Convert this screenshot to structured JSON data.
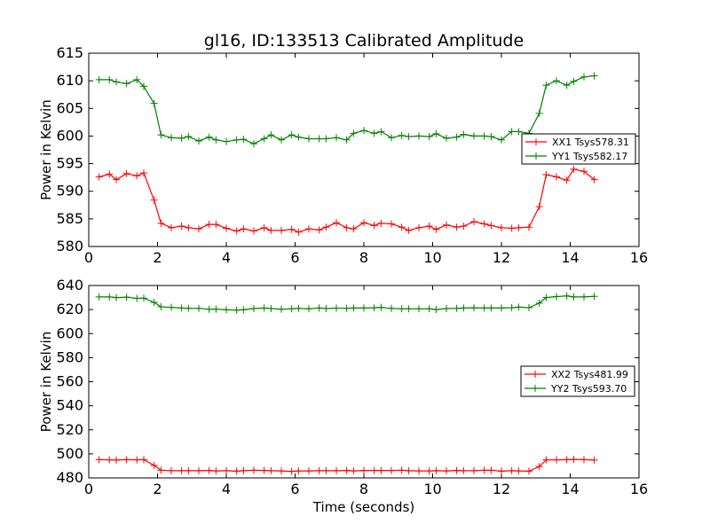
{
  "chart_data": [
    {
      "type": "line",
      "title": "gl16, ID:133513 Calibrated Amplitude",
      "xlabel": "",
      "ylabel": "Power in Kelvin",
      "xlim": [
        0,
        16
      ],
      "ylim": [
        580,
        615
      ],
      "xticks": [
        "0",
        "2",
        "4",
        "6",
        "8",
        "10",
        "12",
        "14",
        "16"
      ],
      "yticks": [
        "580",
        "585",
        "590",
        "595",
        "600",
        "605",
        "610",
        "615"
      ],
      "grid": false,
      "legend_position": "right",
      "x": [
        0.3,
        0.6,
        0.8,
        1.1,
        1.4,
        1.6,
        1.9,
        2.1,
        2.4,
        2.7,
        2.9,
        3.2,
        3.5,
        3.7,
        4.0,
        4.3,
        4.5,
        4.8,
        5.1,
        5.3,
        5.6,
        5.9,
        6.1,
        6.4,
        6.7,
        6.9,
        7.2,
        7.5,
        7.7,
        8.0,
        8.3,
        8.5,
        8.8,
        9.1,
        9.3,
        9.6,
        9.9,
        10.1,
        10.4,
        10.7,
        10.9,
        11.2,
        11.5,
        11.7,
        12.0,
        12.3,
        12.5,
        12.8,
        13.1,
        13.3,
        13.6,
        13.9,
        14.1,
        14.4,
        14.7
      ],
      "series": [
        {
          "name": "XX1 Tsys578.31",
          "color": "#ff0000",
          "values": [
            592.6,
            593.1,
            592.1,
            593.2,
            592.8,
            593.3,
            588.4,
            584.2,
            583.4,
            583.7,
            583.4,
            583.2,
            584.0,
            584.0,
            583.3,
            582.8,
            583.2,
            582.8,
            583.4,
            582.9,
            582.9,
            583.1,
            582.6,
            583.2,
            583.0,
            583.5,
            584.3,
            583.4,
            583.2,
            584.3,
            583.8,
            584.2,
            584.1,
            583.5,
            582.9,
            583.4,
            583.7,
            583.1,
            583.9,
            583.5,
            583.7,
            584.5,
            584.1,
            583.8,
            583.4,
            583.3,
            583.4,
            583.5,
            587.2,
            593.0,
            592.6,
            592.0,
            594.0,
            593.6,
            592.1
          ]
        },
        {
          "name": "YY1 Tsys582.17",
          "color": "#008000",
          "values": [
            610.2,
            610.2,
            609.8,
            609.5,
            610.2,
            609.0,
            605.9,
            600.2,
            599.7,
            599.6,
            599.9,
            599.1,
            599.8,
            599.3,
            599.0,
            599.3,
            599.4,
            598.6,
            599.5,
            600.2,
            599.3,
            600.2,
            599.8,
            599.5,
            599.5,
            599.5,
            599.7,
            599.3,
            600.5,
            601.0,
            600.5,
            600.8,
            599.7,
            600.1,
            599.9,
            600.0,
            599.9,
            600.4,
            599.6,
            599.8,
            600.3,
            600.0,
            600.0,
            599.9,
            599.3,
            600.8,
            600.8,
            600.5,
            604.1,
            609.2,
            610.0,
            609.2,
            609.9,
            610.7,
            610.9
          ]
        }
      ]
    },
    {
      "type": "line",
      "title": "",
      "xlabel": "Time (seconds)",
      "ylabel": "Power in Kelvin",
      "xlim": [
        0,
        16
      ],
      "ylim": [
        480,
        640
      ],
      "xticks": [
        "0",
        "2",
        "4",
        "6",
        "8",
        "10",
        "12",
        "14",
        "16"
      ],
      "yticks": [
        "480",
        "500",
        "520",
        "540",
        "560",
        "580",
        "600",
        "620",
        "640"
      ],
      "grid": false,
      "legend_position": "right",
      "x": [
        0.3,
        0.6,
        0.8,
        1.1,
        1.4,
        1.6,
        1.9,
        2.1,
        2.4,
        2.7,
        2.9,
        3.2,
        3.5,
        3.7,
        4.0,
        4.3,
        4.5,
        4.8,
        5.1,
        5.3,
        5.6,
        5.9,
        6.1,
        6.4,
        6.7,
        6.9,
        7.2,
        7.5,
        7.7,
        8.0,
        8.3,
        8.5,
        8.8,
        9.1,
        9.3,
        9.6,
        9.9,
        10.1,
        10.4,
        10.7,
        10.9,
        11.2,
        11.5,
        11.7,
        12.0,
        12.3,
        12.5,
        12.8,
        13.1,
        13.3,
        13.6,
        13.9,
        14.1,
        14.4,
        14.7
      ],
      "series": [
        {
          "name": "XX2 Tsys481.99",
          "color": "#ff0000",
          "values": [
            495.2,
            495.0,
            494.8,
            495.2,
            495.0,
            495.2,
            490.4,
            486.4,
            486.0,
            486.0,
            486.0,
            486.0,
            486.2,
            485.8,
            486.0,
            485.6,
            486.0,
            486.4,
            486.2,
            486.0,
            485.8,
            485.4,
            485.8,
            485.8,
            486.0,
            486.0,
            486.0,
            486.2,
            485.8,
            486.2,
            486.2,
            486.2,
            486.2,
            486.4,
            486.0,
            485.8,
            485.8,
            486.0,
            485.8,
            486.2,
            486.0,
            486.0,
            486.4,
            486.4,
            485.6,
            486.0,
            485.8,
            485.6,
            489.4,
            495.0,
            495.0,
            495.2,
            495.4,
            495.2,
            494.8
          ]
        },
        {
          "name": "YY2 Tsys593.70",
          "color": "#008000",
          "values": [
            630.5,
            630.5,
            630.0,
            630.3,
            629.3,
            629.5,
            626.0,
            622.3,
            621.8,
            621.3,
            621.0,
            621.0,
            620.3,
            620.3,
            619.8,
            619.5,
            619.8,
            620.8,
            621.3,
            620.8,
            620.3,
            620.6,
            621.0,
            620.6,
            621.3,
            620.8,
            621.2,
            621.0,
            621.3,
            621.3,
            621.5,
            621.8,
            621.0,
            620.6,
            620.6,
            620.6,
            620.6,
            620.0,
            620.8,
            621.0,
            621.3,
            621.5,
            621.3,
            621.3,
            621.3,
            621.6,
            622.0,
            621.6,
            625.3,
            630.0,
            630.8,
            631.3,
            630.5,
            630.5,
            631.0
          ]
        }
      ]
    }
  ]
}
